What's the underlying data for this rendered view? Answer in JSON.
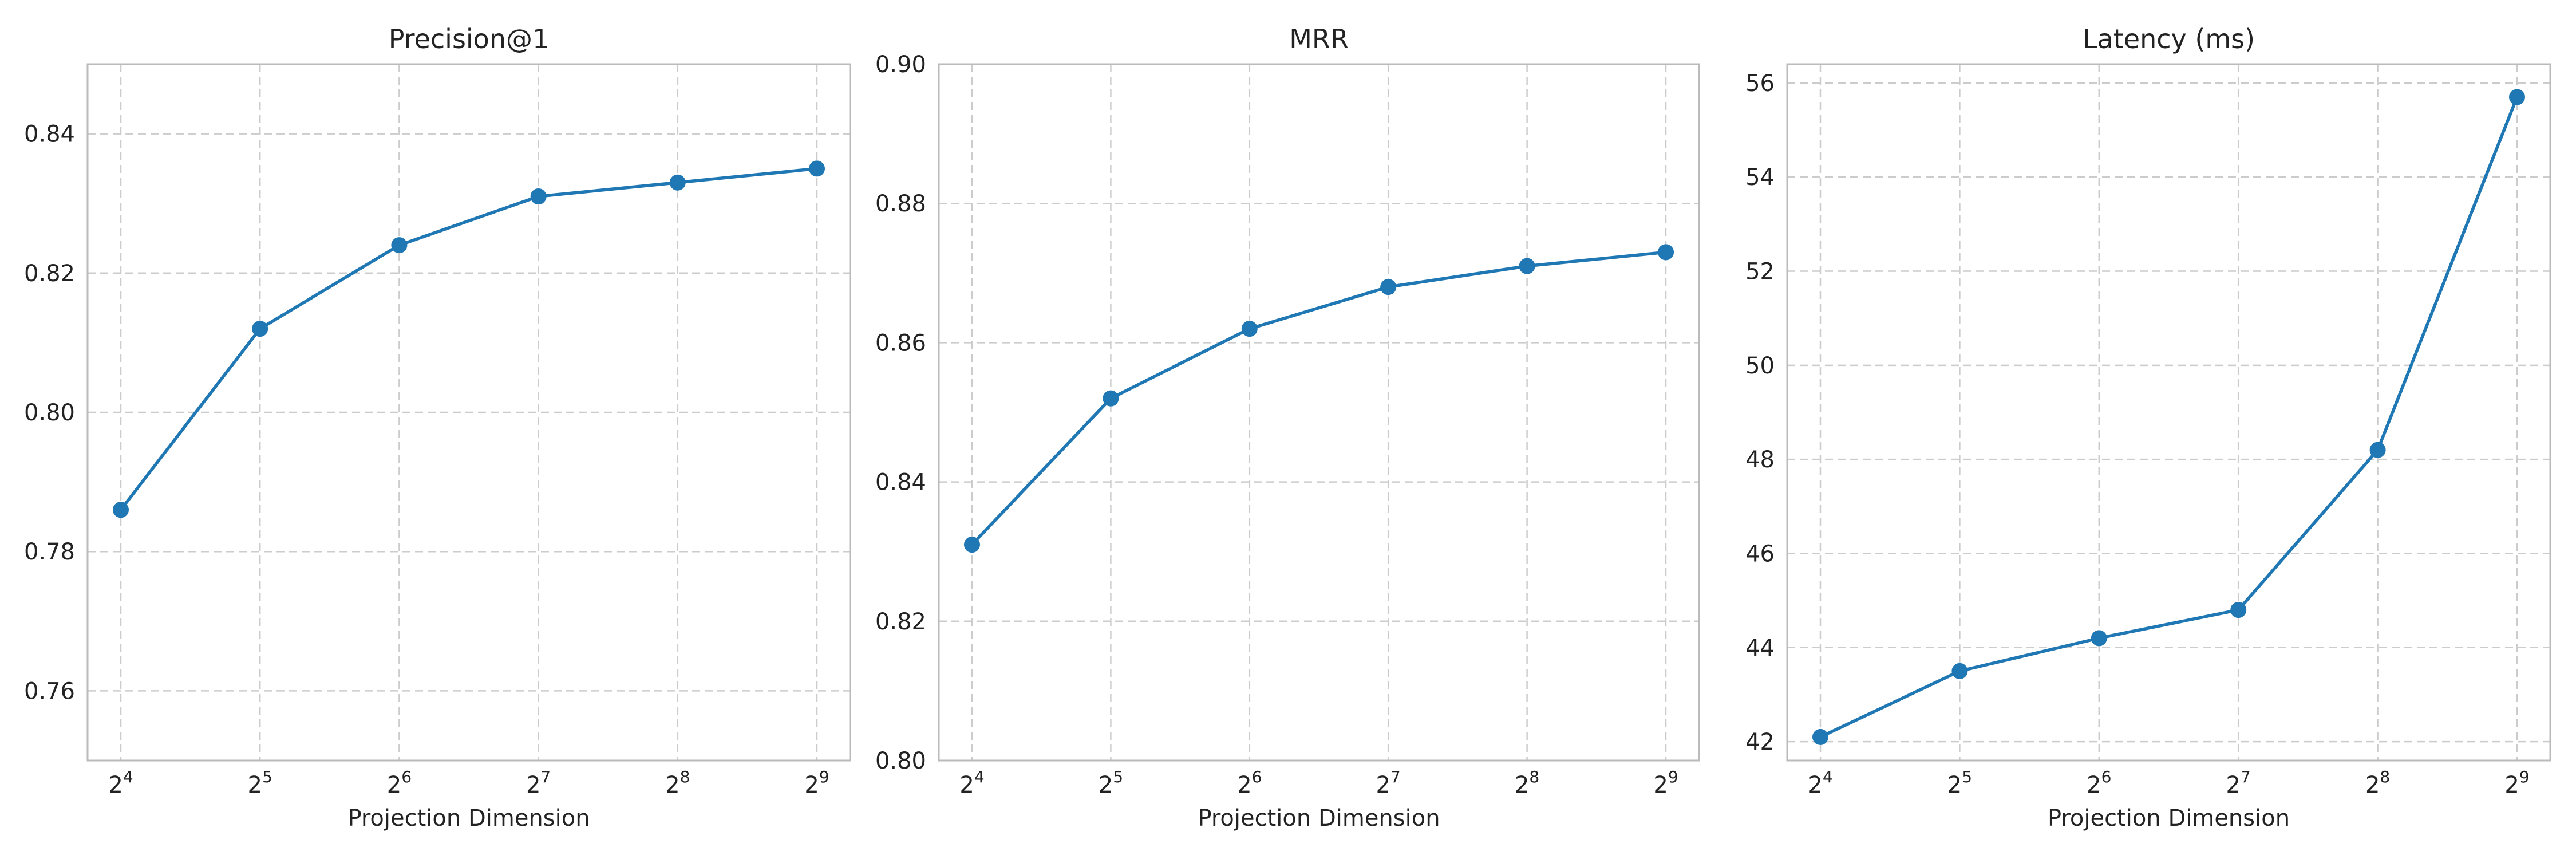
{
  "colors": {
    "series": "#1f77b4"
  },
  "chart_data": [
    {
      "type": "line",
      "title": "Precision@1",
      "xlabel": "Projection Dimension",
      "ylabel": "",
      "x_exponents": [
        4,
        5,
        6,
        7,
        8,
        9
      ],
      "x_tick_labels": [
        {
          "base": "2",
          "exp": "4"
        },
        {
          "base": "2",
          "exp": "5"
        },
        {
          "base": "2",
          "exp": "6"
        },
        {
          "base": "2",
          "exp": "7"
        },
        {
          "base": "2",
          "exp": "8"
        },
        {
          "base": "2",
          "exp": "9"
        }
      ],
      "x_log_base": 2,
      "values": [
        0.786,
        0.812,
        0.824,
        0.831,
        0.833,
        0.835
      ],
      "ylim": [
        0.75,
        0.85
      ],
      "y_ticks": [
        0.76,
        0.78,
        0.8,
        0.82,
        0.84
      ],
      "y_tick_labels": [
        "0.76",
        "0.78",
        "0.80",
        "0.82",
        "0.84"
      ],
      "grid": true,
      "marker": "circle"
    },
    {
      "type": "line",
      "title": "MRR",
      "xlabel": "Projection Dimension",
      "ylabel": "",
      "x_exponents": [
        4,
        5,
        6,
        7,
        8,
        9
      ],
      "x_tick_labels": [
        {
          "base": "2",
          "exp": "4"
        },
        {
          "base": "2",
          "exp": "5"
        },
        {
          "base": "2",
          "exp": "6"
        },
        {
          "base": "2",
          "exp": "7"
        },
        {
          "base": "2",
          "exp": "8"
        },
        {
          "base": "2",
          "exp": "9"
        }
      ],
      "x_log_base": 2,
      "values": [
        0.831,
        0.852,
        0.862,
        0.868,
        0.871,
        0.873
      ],
      "ylim": [
        0.8,
        0.9
      ],
      "y_ticks": [
        0.8,
        0.82,
        0.84,
        0.86,
        0.88,
        0.9
      ],
      "y_tick_labels": [
        "0.80",
        "0.82",
        "0.84",
        "0.86",
        "0.88",
        "0.90"
      ],
      "grid": true,
      "marker": "circle"
    },
    {
      "type": "line",
      "title": "Latency (ms)",
      "xlabel": "Projection Dimension",
      "ylabel": "",
      "x_exponents": [
        4,
        5,
        6,
        7,
        8,
        9
      ],
      "x_tick_labels": [
        {
          "base": "2",
          "exp": "4"
        },
        {
          "base": "2",
          "exp": "5"
        },
        {
          "base": "2",
          "exp": "6"
        },
        {
          "base": "2",
          "exp": "7"
        },
        {
          "base": "2",
          "exp": "8"
        },
        {
          "base": "2",
          "exp": "9"
        }
      ],
      "x_log_base": 2,
      "values": [
        42.1,
        43.5,
        44.2,
        44.8,
        48.2,
        55.7
      ],
      "ylim": [
        41.6,
        56.4
      ],
      "y_ticks": [
        42,
        44,
        46,
        48,
        50,
        52,
        54,
        56
      ],
      "y_tick_labels": [
        "42",
        "44",
        "46",
        "48",
        "50",
        "52",
        "54",
        "56"
      ],
      "grid": true,
      "marker": "circle"
    }
  ]
}
